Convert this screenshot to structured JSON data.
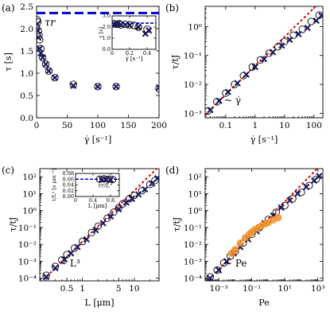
{
  "figure": {
    "panels": [
      {
        "label": "(a)",
        "xlabel": "γ̇ [s⁻¹]",
        "ylabel": "τ [s]",
        "reference_label": "τr",
        "inset": {
          "xlabel": "γ̇ [s⁻¹]",
          "ylabel": "τ [s]",
          "reference_label": "τr"
        }
      },
      {
        "label": "(b)",
        "xlabel": "γ̇ [s⁻¹]",
        "ylabel": "τ/tJ",
        "annotation": "~ γ̇"
      },
      {
        "label": "(c)",
        "xlabel": "L [μm]",
        "ylabel": "τ/tJ",
        "annotation": "~ L³",
        "inset": {
          "xlabel": "L [μm]",
          "ylabel": "τ/L³ [s μm⁻³]",
          "reference_label": "τr/L³"
        }
      },
      {
        "label": "(d)",
        "xlabel": "Pe",
        "ylabel": "τ/tJ",
        "annotation": "~ Pe"
      }
    ]
  },
  "chart_data": [
    {
      "type": "scatter",
      "panel": "(a)",
      "xlabel": "γ̇ [s⁻¹]",
      "ylabel": "τ [s]",
      "xlim": [
        0,
        200
      ],
      "ylim": [
        0,
        2.5
      ],
      "xticks": [
        0,
        50,
        100,
        150,
        200
      ],
      "yticks": [
        0.0,
        0.5,
        1.0,
        1.5,
        2.0,
        2.5
      ],
      "reference_line": {
        "label": "τr",
        "y": 2.35,
        "color": "#0000cc",
        "style": "dashed"
      },
      "series": [
        {
          "marker": "circle",
          "x": [
            1,
            2,
            3,
            4,
            5,
            7,
            10,
            15,
            20,
            30,
            60,
            100,
            130,
            200
          ],
          "y": [
            2.2,
            2.15,
            1.95,
            1.85,
            1.75,
            1.55,
            1.35,
            1.2,
            1.05,
            0.9,
            0.75,
            0.7,
            0.7,
            0.65
          ]
        },
        {
          "marker": "cross",
          "x": [
            1,
            2,
            3,
            5,
            7,
            10,
            15,
            20,
            30,
            60,
            100,
            130,
            200
          ],
          "y": [
            2.1,
            1.95,
            1.8,
            1.55,
            1.45,
            1.35,
            1.2,
            1.05,
            0.9,
            0.72,
            0.7,
            0.7,
            0.68
          ]
        }
      ],
      "inset": {
        "xlabel": "γ̇ [s⁻¹]",
        "ylabel": "τ [s]",
        "xlim": [
          0,
          0.5
        ],
        "ylim": [
          0,
          3.0
        ],
        "xticks": [
          0.0,
          0.2,
          0.4
        ],
        "yticks": [
          0.0,
          1.0,
          2.0,
          3.0
        ],
        "reference_line": {
          "label": "τr",
          "y": 2.35
        },
        "series": [
          {
            "marker": "circle",
            "x": [
              0.02,
              0.05,
              0.08,
              0.1,
              0.15,
              0.2,
              0.25,
              0.3,
              0.4
            ],
            "y": [
              2.3,
              2.25,
              2.3,
              2.2,
              2.25,
              2.2,
              2.15,
              2.0,
              1.8
            ]
          },
          {
            "marker": "cross",
            "x": [
              0.03,
              0.06,
              0.1,
              0.15,
              0.2,
              0.3,
              0.38,
              0.42
            ],
            "y": [
              2.25,
              2.3,
              2.2,
              2.2,
              2.15,
              2.0,
              1.4,
              1.7
            ]
          }
        ]
      }
    },
    {
      "type": "scatter",
      "panel": "(b)",
      "xlabel": "γ̇ [s⁻¹]",
      "ylabel": "τ/tJ",
      "xscale": "log",
      "yscale": "log",
      "xlim": [
        0.02,
        200
      ],
      "ylim": [
        0.0007,
        5
      ],
      "xticks": [
        0.1,
        1,
        10,
        100
      ],
      "xticklabels": [
        "0.1",
        "1",
        "10",
        "100"
      ],
      "yticks": [
        0.001,
        0.01,
        0.1,
        1
      ],
      "yticklabels": [
        "10⁻³",
        "10⁻²",
        "10⁻¹",
        "10⁰"
      ],
      "trend_line": {
        "label": "~ γ̇",
        "slope": 1,
        "through": [
          0.025,
          0.0011
        ],
        "color": "#dd0000",
        "style": "dotted"
      },
      "series": [
        {
          "marker": "circle",
          "x": [
            0.025,
            0.05,
            0.1,
            0.2,
            0.4,
            0.8,
            1.5,
            3,
            6,
            10,
            20,
            40,
            80,
            150
          ],
          "y": [
            0.0012,
            0.0025,
            0.005,
            0.01,
            0.02,
            0.04,
            0.07,
            0.12,
            0.2,
            0.3,
            0.5,
            0.8,
            1.5,
            2.5
          ]
        },
        {
          "marker": "cross",
          "x": [
            0.03,
            0.06,
            0.12,
            0.25,
            0.5,
            1,
            2,
            4,
            8,
            15,
            30,
            60,
            120,
            180
          ],
          "y": [
            0.0013,
            0.0027,
            0.0055,
            0.011,
            0.022,
            0.04,
            0.075,
            0.13,
            0.22,
            0.35,
            0.55,
            0.9,
            1.6,
            2.4
          ]
        }
      ]
    },
    {
      "type": "scatter",
      "panel": "(c)",
      "xlabel": "L [μm]",
      "ylabel": "τ/tJ",
      "xscale": "log",
      "yscale": "log",
      "xlim": [
        0.15,
        30
      ],
      "ylim": [
        7e-05,
        300
      ],
      "xticks": [
        0.5,
        1,
        5,
        10
      ],
      "xticklabels": [
        "0.5",
        "1",
        "5",
        "10"
      ],
      "yticks": [
        0.0001,
        0.001,
        0.01,
        0.1,
        1,
        10,
        100
      ],
      "yticklabels": [
        "10⁻⁴",
        "10⁻³",
        "10⁻²",
        "10⁻¹",
        "10⁰",
        "10¹",
        "10²"
      ],
      "trend_line": {
        "label": "~ L³",
        "slope": 3,
        "through": [
          0.2,
          0.00012
        ],
        "color": "#dd0000",
        "style": "dotted"
      },
      "series": [
        {
          "marker": "circle",
          "x": [
            0.2,
            0.3,
            0.4,
            0.5,
            0.7,
            1,
            1.5,
            2,
            3,
            4,
            5,
            6,
            8,
            10,
            14,
            20,
            25
          ],
          "y": [
            0.00015,
            0.0005,
            0.0012,
            0.0025,
            0.006,
            0.015,
            0.05,
            0.12,
            0.35,
            0.8,
            1.5,
            2.5,
            5,
            8,
            15,
            35,
            60
          ]
        },
        {
          "marker": "cross",
          "x": [
            0.2,
            0.3,
            0.45,
            0.6,
            0.8,
            1.2,
            1.8,
            2.5,
            3.5,
            5,
            7,
            9,
            12,
            16,
            22,
            28
          ],
          "y": [
            0.00012,
            0.0004,
            0.0013,
            0.003,
            0.007,
            0.02,
            0.07,
            0.18,
            0.45,
            1.2,
            3,
            5,
            9,
            18,
            40,
            80
          ]
        }
      ],
      "inset": {
        "xlabel": "L [μm]",
        "ylabel": "τ/L³ [s μm⁻³]",
        "xlim": [
          0,
          1.0
        ],
        "ylim": [
          0,
          0.08
        ],
        "xticks": [
          0.0,
          0.4,
          0.8
        ],
        "yticks": [
          0.0,
          0.02,
          0.04,
          0.06,
          0.08
        ],
        "reference_line": {
          "label": "τr/L³",
          "y": 0.06
        },
        "series": [
          {
            "marker": "circle",
            "x": [
              0.55,
              0.65,
              0.75,
              0.85
            ],
            "y": [
              0.06,
              0.061,
              0.06,
              0.059
            ]
          },
          {
            "marker": "cross",
            "x": [
              0.6,
              0.7,
              0.8
            ],
            "y": [
              0.059,
              0.06,
              0.058
            ]
          }
        ]
      }
    },
    {
      "type": "scatter",
      "panel": "(d)",
      "xlabel": "Pe",
      "ylabel": "τ/tJ",
      "xscale": "log",
      "yscale": "log",
      "xlim": [
        0.00015,
        2000
      ],
      "ylim": [
        7e-05,
        300
      ],
      "xticks": [
        0.001,
        0.1,
        10,
        1000
      ],
      "xticklabels": [
        "10⁻³",
        "10⁻¹",
        "10¹",
        "10³"
      ],
      "yticks": [
        0.0001,
        0.001,
        0.01,
        0.1,
        1,
        10,
        100
      ],
      "yticklabels": [
        "10⁻⁴",
        "10⁻³",
        "10⁻²",
        "10⁻¹",
        "10⁰",
        "10¹",
        "10²"
      ],
      "trend_line": {
        "label": "~ Pe",
        "slope": 1,
        "through": [
          0.0003,
          0.0001
        ],
        "color": "#dd0000",
        "style": "dotted"
      },
      "series": [
        {
          "marker": "circle",
          "x": [
            0.0003,
            0.0008,
            0.002,
            0.005,
            0.01,
            0.03,
            0.1,
            0.3,
            1,
            3,
            10,
            30,
            100,
            300,
            800
          ],
          "y": [
            0.00012,
            0.0003,
            0.0008,
            0.002,
            0.004,
            0.012,
            0.04,
            0.1,
            0.3,
            0.8,
            2,
            5,
            12,
            30,
            70
          ]
        },
        {
          "marker": "cross",
          "x": [
            0.0003,
            0.001,
            0.003,
            0.008,
            0.02,
            0.06,
            0.2,
            0.6,
            2,
            6,
            20,
            60,
            200,
            600,
            1200
          ],
          "y": [
            0.0001,
            0.0003,
            0.001,
            0.003,
            0.007,
            0.02,
            0.06,
            0.18,
            0.5,
            1.5,
            4,
            10,
            25,
            60,
            110
          ]
        },
        {
          "marker": "circle-filled",
          "color": "#f5922a",
          "x": [
            0.006,
            0.01,
            0.02,
            0.04,
            0.07,
            0.1,
            0.15,
            0.25,
            0.4,
            0.7,
            1,
            2,
            4
          ],
          "y": [
            0.003,
            0.005,
            0.012,
            0.025,
            0.04,
            0.055,
            0.075,
            0.1,
            0.13,
            0.17,
            0.2,
            0.28,
            0.38
          ]
        }
      ]
    }
  ]
}
